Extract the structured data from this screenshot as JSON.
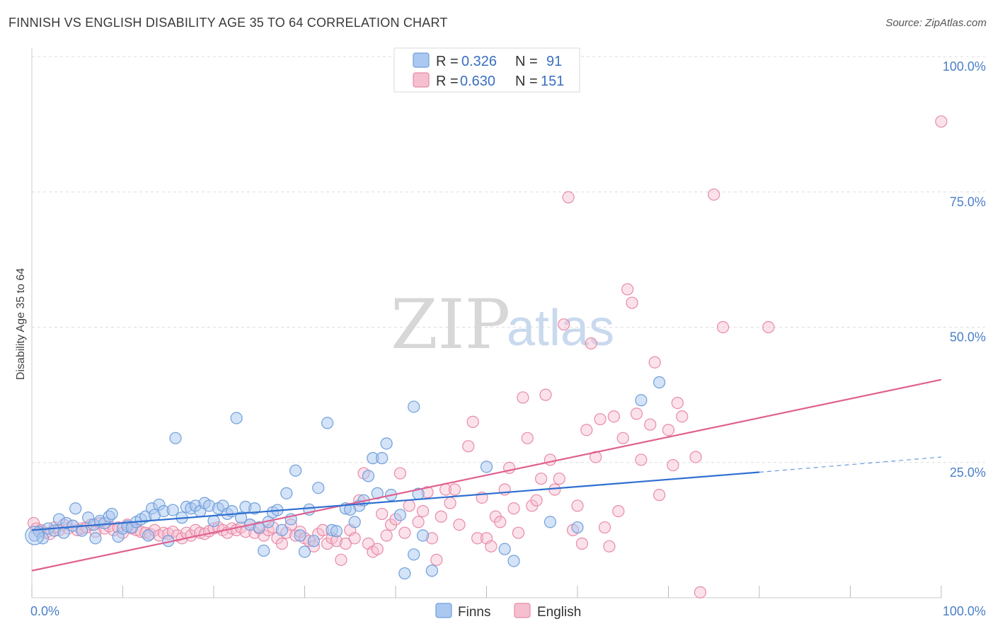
{
  "title": "FINNISH VS ENGLISH DISABILITY AGE 35 TO 64 CORRELATION CHART",
  "source": "Source: ZipAtlas.com",
  "watermark": {
    "zip": "ZIP",
    "atlas": "atlas"
  },
  "colors": {
    "finns_fill": "#aac8f0",
    "finns_stroke": "#6f9fdc",
    "finns_line": "#2f6fd0",
    "english_fill": "#f6bfd0",
    "english_stroke": "#e88aa8",
    "english_line": "#e06090",
    "tick_text": "#4a7fc8",
    "grid": "#dddddd"
  },
  "legend": {
    "rows": [
      {
        "r_label": "R =",
        "r_value": "0.326",
        "n_label": "N =",
        "n_value": "91"
      },
      {
        "r_label": "R =",
        "r_value": "0.630",
        "n_label": "N =",
        "n_value": "151"
      }
    ]
  },
  "bottom_legend": [
    "Finns",
    "English"
  ],
  "chart_data": {
    "type": "scatter",
    "title": "FINNISH VS ENGLISH DISABILITY AGE 35 TO 64 CORRELATION CHART",
    "xlabel": "",
    "ylabel": "Disability Age 35 to 64",
    "xlim": [
      0,
      100
    ],
    "ylim": [
      0,
      100
    ],
    "x_tick_labels": [
      "0.0%",
      "100.0%"
    ],
    "y_tick_labels": [
      "100.0%",
      "75.0%",
      "50.0%",
      "25.0%"
    ],
    "y_ticks": [
      100,
      75,
      50,
      25
    ],
    "grid": true,
    "legend_position": "top-center",
    "series": [
      {
        "name": "Finns",
        "R": 0.326,
        "N": 91,
        "trend": {
          "x_start": 0,
          "y_start": 12.5,
          "x_solid_end": 80,
          "y_solid_end": 23.2,
          "x_end": 100,
          "y_end": 26.0
        },
        "points": [
          [
            0.3,
            11.5
          ],
          [
            0.8,
            12.2
          ],
          [
            1.2,
            11.0
          ],
          [
            1.8,
            12.8
          ],
          [
            2.5,
            12.4
          ],
          [
            3.0,
            14.5
          ],
          [
            3.5,
            12.0
          ],
          [
            3.8,
            13.8
          ],
          [
            4.5,
            13.3
          ],
          [
            4.8,
            16.5
          ],
          [
            5.5,
            12.4
          ],
          [
            6.2,
            14.8
          ],
          [
            6.8,
            13.5
          ],
          [
            7.0,
            11.0
          ],
          [
            7.5,
            14.2
          ],
          [
            8.0,
            13.8
          ],
          [
            8.5,
            15.0
          ],
          [
            8.8,
            15.5
          ],
          [
            9.5,
            11.3
          ],
          [
            10.0,
            12.8
          ],
          [
            10.5,
            13.2
          ],
          [
            11.0,
            13.0
          ],
          [
            11.5,
            14.0
          ],
          [
            12.0,
            14.5
          ],
          [
            12.5,
            15.0
          ],
          [
            12.8,
            11.5
          ],
          [
            13.2,
            16.5
          ],
          [
            13.5,
            15.3
          ],
          [
            14.0,
            17.2
          ],
          [
            14.5,
            16.0
          ],
          [
            15.0,
            10.5
          ],
          [
            15.5,
            16.2
          ],
          [
            15.8,
            29.5
          ],
          [
            16.5,
            14.8
          ],
          [
            17.0,
            16.8
          ],
          [
            17.5,
            16.5
          ],
          [
            18.0,
            17.0
          ],
          [
            18.5,
            16.0
          ],
          [
            19.0,
            17.5
          ],
          [
            19.5,
            17.0
          ],
          [
            20.0,
            14.2
          ],
          [
            20.5,
            16.5
          ],
          [
            21.0,
            17.0
          ],
          [
            21.5,
            15.5
          ],
          [
            22.0,
            16.0
          ],
          [
            22.5,
            33.2
          ],
          [
            23.0,
            14.8
          ],
          [
            23.5,
            16.8
          ],
          [
            24.0,
            13.5
          ],
          [
            24.5,
            16.5
          ],
          [
            25.0,
            13.0
          ],
          [
            25.5,
            8.7
          ],
          [
            26.0,
            14.0
          ],
          [
            26.5,
            15.8
          ],
          [
            27.0,
            16.2
          ],
          [
            27.5,
            12.5
          ],
          [
            28.0,
            19.3
          ],
          [
            28.5,
            14.5
          ],
          [
            29.0,
            23.5
          ],
          [
            29.5,
            11.5
          ],
          [
            30.0,
            8.5
          ],
          [
            30.5,
            16.3
          ],
          [
            31.5,
            20.3
          ],
          [
            31.0,
            10.5
          ],
          [
            32.5,
            32.3
          ],
          [
            33.0,
            12.5
          ],
          [
            33.5,
            12.3
          ],
          [
            34.5,
            16.5
          ],
          [
            35.0,
            16.3
          ],
          [
            35.5,
            14.0
          ],
          [
            36.0,
            17.0
          ],
          [
            36.5,
            18.0
          ],
          [
            37.0,
            22.5
          ],
          [
            37.5,
            25.8
          ],
          [
            38.0,
            19.3
          ],
          [
            38.5,
            25.8
          ],
          [
            39.0,
            28.5
          ],
          [
            39.5,
            19.0
          ],
          [
            40.5,
            15.3
          ],
          [
            41.0,
            4.5
          ],
          [
            42.0,
            8.0
          ],
          [
            42.0,
            35.3
          ],
          [
            42.5,
            19.2
          ],
          [
            43.0,
            11.5
          ],
          [
            44.0,
            5.0
          ],
          [
            50.0,
            24.2
          ],
          [
            52.0,
            9.0
          ],
          [
            53.0,
            6.8
          ],
          [
            57.0,
            14.0
          ],
          [
            60.0,
            13.0
          ],
          [
            67.0,
            36.5
          ],
          [
            69.0,
            39.8
          ]
        ]
      },
      {
        "name": "English",
        "R": 0.63,
        "N": 151,
        "trend": {
          "x_start": 0,
          "y_start": 5.0,
          "x_end": 100,
          "y_end": 40.3
        },
        "points": [
          [
            0.2,
            13.8
          ],
          [
            0.5,
            12.8
          ],
          [
            1.0,
            12.5
          ],
          [
            1.5,
            12.0
          ],
          [
            2.0,
            11.8
          ],
          [
            2.5,
            13.0
          ],
          [
            3.0,
            12.5
          ],
          [
            3.5,
            13.5
          ],
          [
            4.0,
            12.8
          ],
          [
            4.5,
            13.3
          ],
          [
            5.0,
            12.5
          ],
          [
            5.5,
            12.8
          ],
          [
            6.0,
            13.0
          ],
          [
            6.5,
            13.5
          ],
          [
            7.0,
            12.2
          ],
          [
            7.5,
            13.8
          ],
          [
            8.0,
            12.8
          ],
          [
            8.5,
            13.2
          ],
          [
            9.0,
            12.5
          ],
          [
            9.5,
            13.0
          ],
          [
            10.0,
            12.0
          ],
          [
            10.5,
            13.5
          ],
          [
            11.0,
            12.8
          ],
          [
            11.5,
            12.5
          ],
          [
            12.0,
            12.2
          ],
          [
            12.5,
            12.0
          ],
          [
            13.0,
            11.8
          ],
          [
            13.5,
            12.5
          ],
          [
            14.0,
            11.5
          ],
          [
            14.5,
            12.0
          ],
          [
            15.0,
            11.8
          ],
          [
            15.5,
            12.2
          ],
          [
            16.0,
            11.5
          ],
          [
            16.5,
            11.0
          ],
          [
            17.0,
            12.0
          ],
          [
            17.5,
            11.5
          ],
          [
            18.0,
            12.5
          ],
          [
            18.5,
            12.0
          ],
          [
            19.0,
            11.8
          ],
          [
            19.5,
            12.3
          ],
          [
            20.0,
            12.8
          ],
          [
            20.5,
            13.0
          ],
          [
            21.0,
            12.5
          ],
          [
            21.5,
            12.0
          ],
          [
            22.0,
            12.8
          ],
          [
            22.5,
            12.5
          ],
          [
            23.0,
            13.0
          ],
          [
            23.5,
            12.2
          ],
          [
            24.0,
            13.5
          ],
          [
            24.5,
            12.0
          ],
          [
            25.0,
            12.8
          ],
          [
            25.5,
            11.5
          ],
          [
            26.0,
            12.5
          ],
          [
            26.5,
            13.0
          ],
          [
            27.0,
            11.0
          ],
          [
            27.5,
            10.0
          ],
          [
            28.0,
            12.0
          ],
          [
            28.5,
            13.5
          ],
          [
            29.0,
            11.5
          ],
          [
            29.5,
            12.2
          ],
          [
            30.0,
            11.0
          ],
          [
            30.5,
            10.5
          ],
          [
            31.0,
            9.5
          ],
          [
            31.5,
            11.8
          ],
          [
            32.0,
            12.5
          ],
          [
            32.5,
            10.0
          ],
          [
            33.0,
            11.0
          ],
          [
            33.5,
            10.5
          ],
          [
            34.0,
            7.0
          ],
          [
            34.5,
            10.0
          ],
          [
            35.0,
            12.5
          ],
          [
            35.5,
            11.0
          ],
          [
            36.0,
            18.0
          ],
          [
            36.5,
            23.0
          ],
          [
            37.0,
            10.0
          ],
          [
            37.5,
            8.5
          ],
          [
            38.0,
            9.0
          ],
          [
            38.5,
            15.5
          ],
          [
            39.0,
            11.5
          ],
          [
            39.5,
            13.5
          ],
          [
            40.0,
            14.5
          ],
          [
            40.5,
            23.0
          ],
          [
            41.0,
            12.0
          ],
          [
            41.5,
            17.0
          ],
          [
            42.5,
            14.0
          ],
          [
            43.0,
            16.0
          ],
          [
            43.5,
            19.5
          ],
          [
            44.0,
            11.0
          ],
          [
            44.5,
            7.0
          ],
          [
            45.0,
            15.0
          ],
          [
            45.5,
            20.0
          ],
          [
            46.0,
            17.5
          ],
          [
            46.5,
            20.0
          ],
          [
            47.0,
            13.5
          ],
          [
            48.0,
            28.0
          ],
          [
            48.5,
            32.5
          ],
          [
            49.0,
            11.0
          ],
          [
            49.5,
            18.5
          ],
          [
            50.0,
            11.0
          ],
          [
            50.5,
            9.5
          ],
          [
            51.0,
            15.0
          ],
          [
            51.5,
            14.0
          ],
          [
            52.0,
            20.0
          ],
          [
            52.5,
            24.0
          ],
          [
            53.0,
            16.5
          ],
          [
            53.5,
            12.0
          ],
          [
            54.0,
            37.0
          ],
          [
            54.5,
            29.5
          ],
          [
            55.0,
            17.0
          ],
          [
            55.5,
            18.0
          ],
          [
            56.0,
            22.0
          ],
          [
            56.5,
            37.5
          ],
          [
            57.0,
            25.5
          ],
          [
            57.5,
            20.0
          ],
          [
            58.0,
            22.0
          ],
          [
            58.5,
            50.5
          ],
          [
            59.0,
            74.0
          ],
          [
            59.5,
            12.5
          ],
          [
            60.0,
            17.0
          ],
          [
            60.5,
            10.0
          ],
          [
            61.0,
            31.0
          ],
          [
            61.5,
            47.0
          ],
          [
            62.0,
            26.0
          ],
          [
            62.5,
            33.0
          ],
          [
            63.0,
            13.0
          ],
          [
            63.5,
            9.5
          ],
          [
            64.0,
            33.5
          ],
          [
            64.5,
            16.0
          ],
          [
            65.0,
            29.5
          ],
          [
            65.5,
            57.0
          ],
          [
            66.0,
            54.5
          ],
          [
            66.5,
            34.0
          ],
          [
            67.0,
            25.5
          ],
          [
            68.0,
            32.0
          ],
          [
            68.5,
            43.5
          ],
          [
            69.0,
            19.0
          ],
          [
            70.0,
            31.0
          ],
          [
            70.5,
            24.5
          ],
          [
            71.0,
            36.0
          ],
          [
            71.5,
            33.5
          ],
          [
            73.0,
            26.0
          ],
          [
            73.5,
            1.0
          ],
          [
            75.0,
            74.5
          ],
          [
            76.0,
            50.0
          ],
          [
            81.0,
            50.0
          ],
          [
            100.0,
            88.0
          ]
        ]
      }
    ]
  }
}
